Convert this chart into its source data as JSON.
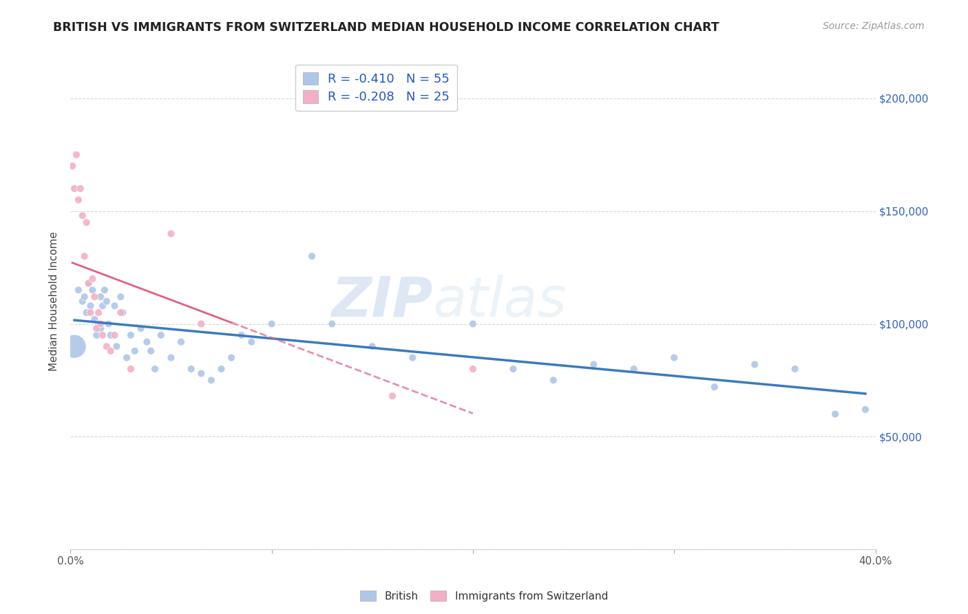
{
  "title": "BRITISH VS IMMIGRANTS FROM SWITZERLAND MEDIAN HOUSEHOLD INCOME CORRELATION CHART",
  "source": "Source: ZipAtlas.com",
  "ylabel": "Median Household Income",
  "watermark": "ZIPatlas",
  "xlim": [
    0.0,
    0.4
  ],
  "ylim": [
    0,
    220000
  ],
  "yticks": [
    0,
    50000,
    100000,
    150000,
    200000
  ],
  "ytick_labels": [
    "",
    "$50,000",
    "$100,000",
    "$150,000",
    "$200,000"
  ],
  "xticks": [
    0.0,
    0.1,
    0.2,
    0.3,
    0.4
  ],
  "xtick_labels": [
    "0.0%",
    "",
    "",
    "",
    "40.0%"
  ],
  "legend_blue_label": "R = -0.410   N = 55",
  "legend_pink_label": "R = -0.208   N = 25",
  "blue_color": "#aec6e8",
  "pink_color": "#f4afc4",
  "blue_line_color": "#3a7abf",
  "pink_line_color": "#e06080",
  "background_color": "#ffffff",
  "grid_color": "#d8d8d8",
  "british_x": [
    0.002,
    0.004,
    0.006,
    0.007,
    0.008,
    0.009,
    0.01,
    0.011,
    0.012,
    0.013,
    0.014,
    0.015,
    0.015,
    0.016,
    0.017,
    0.018,
    0.019,
    0.02,
    0.022,
    0.023,
    0.025,
    0.026,
    0.028,
    0.03,
    0.032,
    0.035,
    0.038,
    0.04,
    0.042,
    0.045,
    0.05,
    0.055,
    0.06,
    0.065,
    0.07,
    0.075,
    0.08,
    0.085,
    0.09,
    0.1,
    0.12,
    0.13,
    0.15,
    0.17,
    0.2,
    0.22,
    0.24,
    0.26,
    0.28,
    0.3,
    0.32,
    0.34,
    0.36,
    0.38,
    0.395
  ],
  "british_y": [
    90000,
    115000,
    110000,
    112000,
    105000,
    118000,
    108000,
    115000,
    102000,
    95000,
    100000,
    112000,
    98000,
    108000,
    115000,
    110000,
    100000,
    95000,
    108000,
    90000,
    112000,
    105000,
    85000,
    95000,
    88000,
    98000,
    92000,
    88000,
    80000,
    95000,
    85000,
    92000,
    80000,
    78000,
    75000,
    80000,
    85000,
    95000,
    92000,
    100000,
    130000,
    100000,
    90000,
    85000,
    100000,
    80000,
    75000,
    82000,
    80000,
    85000,
    72000,
    82000,
    80000,
    60000,
    62000
  ],
  "british_size_big": 0.002,
  "swiss_x": [
    0.001,
    0.002,
    0.003,
    0.004,
    0.005,
    0.006,
    0.007,
    0.008,
    0.009,
    0.01,
    0.011,
    0.012,
    0.013,
    0.014,
    0.015,
    0.016,
    0.018,
    0.02,
    0.022,
    0.025,
    0.03,
    0.05,
    0.065,
    0.16,
    0.2
  ],
  "swiss_y": [
    170000,
    160000,
    175000,
    155000,
    160000,
    148000,
    130000,
    145000,
    118000,
    105000,
    120000,
    112000,
    98000,
    105000,
    100000,
    95000,
    90000,
    88000,
    95000,
    105000,
    80000,
    140000,
    100000,
    68000,
    80000
  ]
}
